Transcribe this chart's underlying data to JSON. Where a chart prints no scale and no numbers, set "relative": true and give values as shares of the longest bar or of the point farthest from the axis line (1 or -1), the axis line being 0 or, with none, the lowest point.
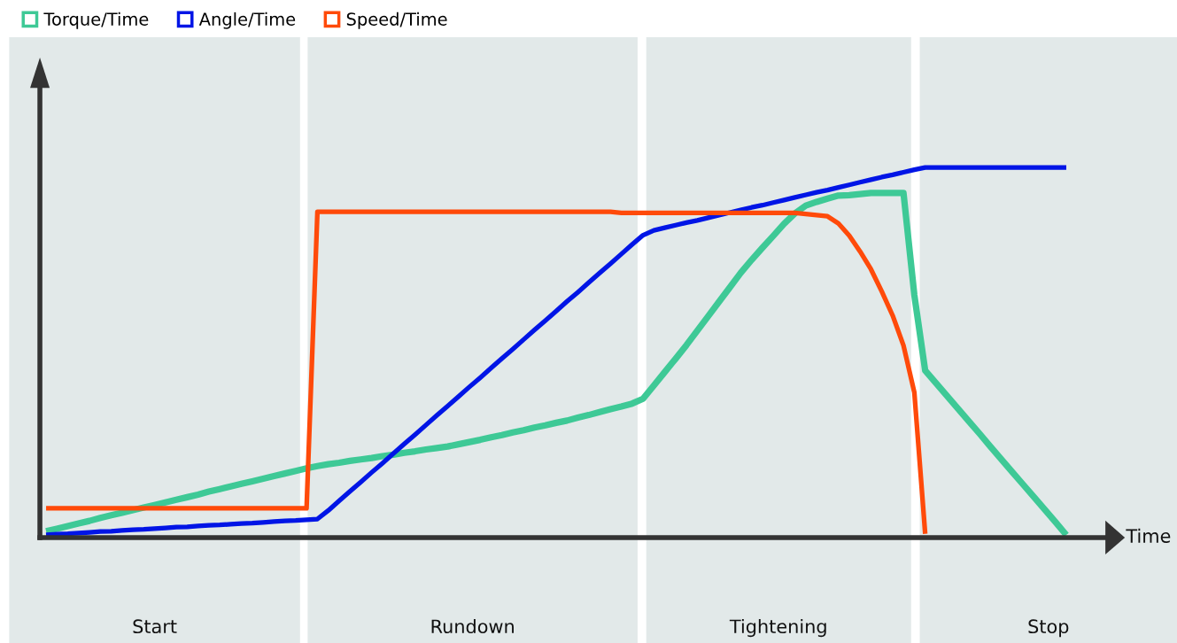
{
  "chart_data": {
    "type": "line",
    "relative": true,
    "xlabel": "Time",
    "legend": "top left",
    "line_style": "solid",
    "marker": "none",
    "categories": [
      null,
      null,
      null,
      null,
      null,
      null,
      null,
      null,
      null,
      null,
      null,
      null,
      null,
      null,
      null,
      null,
      null,
      null,
      null,
      null,
      null,
      null,
      null,
      null,
      null,
      null,
      null,
      null,
      null,
      null,
      null,
      null,
      null,
      null,
      null,
      null,
      null,
      null,
      null,
      null,
      null,
      null,
      null,
      null,
      null,
      null,
      null,
      null,
      null,
      null,
      null,
      null,
      null,
      null,
      null,
      null,
      null,
      null,
      null,
      null,
      null,
      null,
      null,
      null,
      null,
      null,
      null,
      null,
      null,
      null,
      null,
      null,
      null,
      null,
      null,
      null,
      null,
      null,
      null,
      null,
      null,
      null,
      null,
      null,
      null,
      null,
      null,
      null,
      null,
      null,
      null,
      null,
      null,
      null,
      null
    ],
    "series": [
      {
        "name": "Torque/Time",
        "color": "#3ec996",
        "values": [
          0.017,
          0.024,
          0.031,
          0.038,
          0.045,
          0.053,
          0.06,
          0.067,
          0.074,
          0.081,
          0.088,
          0.095,
          0.102,
          0.109,
          0.116,
          0.124,
          0.131,
          0.138,
          0.145,
          0.152,
          0.159,
          0.166,
          0.173,
          0.18,
          0.187,
          0.193,
          0.198,
          0.202,
          0.207,
          0.211,
          0.215,
          0.22,
          0.224,
          0.229,
          0.233,
          0.238,
          0.242,
          0.246,
          0.252,
          0.258,
          0.264,
          0.271,
          0.277,
          0.284,
          0.29,
          0.297,
          0.303,
          0.31,
          0.316,
          0.324,
          0.331,
          0.339,
          0.347,
          0.354,
          0.362,
          0.375,
          0.411,
          0.447,
          0.483,
          0.52,
          0.559,
          0.598,
          0.637,
          0.676,
          0.715,
          0.75,
          0.783,
          0.815,
          0.848,
          0.876,
          0.897,
          0.907,
          0.916,
          0.924,
          0.925,
          0.928,
          0.931,
          0.931,
          0.931,
          0.931,
          0.655,
          0.451,
          0.417,
          0.383,
          0.349,
          0.315,
          0.281,
          0.246,
          0.212,
          0.178,
          0.144,
          0.11,
          0.076,
          0.042,
          0.007
        ]
      },
      {
        "name": "Angle/Time",
        "color": "#0015e6",
        "values": [
          0.007,
          0.009,
          0.01,
          0.012,
          0.014,
          0.016,
          0.017,
          0.019,
          0.021,
          0.022,
          0.024,
          0.026,
          0.028,
          0.029,
          0.031,
          0.033,
          0.034,
          0.036,
          0.038,
          0.039,
          0.041,
          0.043,
          0.045,
          0.046,
          0.048,
          0.05,
          0.073,
          0.099,
          0.125,
          0.15,
          0.176,
          0.201,
          0.227,
          0.253,
          0.278,
          0.304,
          0.33,
          0.355,
          0.381,
          0.407,
          0.432,
          0.458,
          0.484,
          0.509,
          0.535,
          0.561,
          0.586,
          0.612,
          0.638,
          0.663,
          0.689,
          0.715,
          0.74,
          0.766,
          0.792,
          0.817,
          0.83,
          0.837,
          0.844,
          0.851,
          0.857,
          0.864,
          0.871,
          0.878,
          0.885,
          0.892,
          0.898,
          0.905,
          0.912,
          0.919,
          0.926,
          0.933,
          0.939,
          0.946,
          0.953,
          0.96,
          0.967,
          0.974,
          0.98,
          0.987,
          0.994,
          1,
          1,
          1,
          1,
          1,
          1,
          1,
          1,
          1,
          1,
          1,
          1,
          1,
          1
        ]
      },
      {
        "name": "Speed/Time",
        "color": "#ff4a0a",
        "values": [
          0.079,
          0.079,
          0.079,
          0.079,
          0.079,
          0.079,
          0.079,
          0.079,
          0.079,
          0.079,
          0.079,
          0.079,
          0.079,
          0.079,
          0.079,
          0.079,
          0.079,
          0.079,
          0.079,
          0.079,
          0.079,
          0.079,
          0.079,
          0.079,
          0.079,
          0.88,
          0.88,
          0.88,
          0.88,
          0.88,
          0.88,
          0.88,
          0.88,
          0.88,
          0.88,
          0.88,
          0.88,
          0.88,
          0.88,
          0.88,
          0.88,
          0.88,
          0.88,
          0.88,
          0.88,
          0.88,
          0.88,
          0.88,
          0.88,
          0.88,
          0.88,
          0.88,
          0.88,
          0.877,
          0.877,
          0.877,
          0.877,
          0.877,
          0.877,
          0.877,
          0.877,
          0.877,
          0.877,
          0.877,
          0.877,
          0.877,
          0.877,
          0.877,
          0.877,
          0.877,
          0.874,
          0.871,
          0.868,
          0.849,
          0.816,
          0.773,
          0.725,
          0.665,
          0.6,
          0.519,
          0.392,
          0.01,
          null,
          null,
          null,
          null,
          null,
          null,
          null,
          null,
          null,
          null,
          null,
          null,
          null
        ]
      }
    ],
    "annotations": [
      "Start",
      "Rundown",
      "Tightening",
      "Stop"
    ]
  }
}
